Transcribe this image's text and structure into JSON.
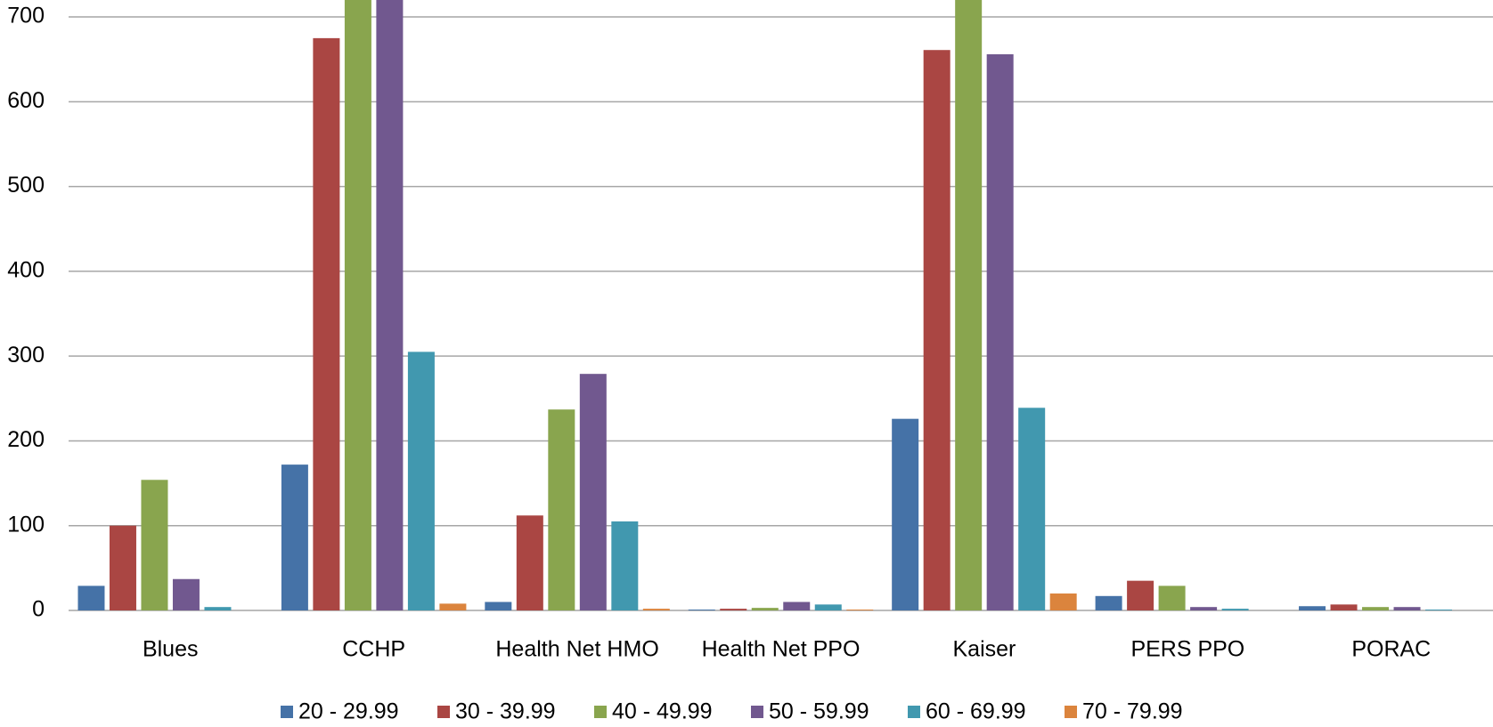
{
  "chart_data": {
    "type": "bar",
    "categories": [
      "Blues",
      "CCHP",
      "Health Net HMO",
      "Health Net PPO",
      "Kaiser",
      "PERS PPO",
      "PORAC"
    ],
    "series": [
      {
        "name": "20 - 29.99",
        "color": "#4572a7",
        "values": [
          29,
          172,
          10,
          1,
          226,
          17,
          5
        ]
      },
      {
        "name": "30 - 39.99",
        "color": "#aa4643",
        "values": [
          100,
          675,
          112,
          2,
          661,
          35,
          7
        ]
      },
      {
        "name": "40 - 49.99",
        "color": "#89a54e",
        "values": [
          154,
          720,
          237,
          3,
          720,
          29,
          4
        ]
      },
      {
        "name": "50 - 59.99",
        "color": "#71588f",
        "values": [
          37,
          720,
          279,
          10,
          656,
          4,
          4
        ]
      },
      {
        "name": "60 - 69.99",
        "color": "#4198af",
        "values": [
          4,
          305,
          105,
          7,
          239,
          2,
          1
        ]
      },
      {
        "name": "70 - 79.99",
        "color": "#db843d",
        "values": [
          0,
          8,
          2,
          1,
          20,
          0,
          0
        ]
      }
    ],
    "ylim": [
      0,
      720
    ],
    "yticks": [
      0,
      100,
      200,
      300,
      400,
      500,
      600,
      700
    ],
    "grid": true,
    "legend": "bottom"
  }
}
